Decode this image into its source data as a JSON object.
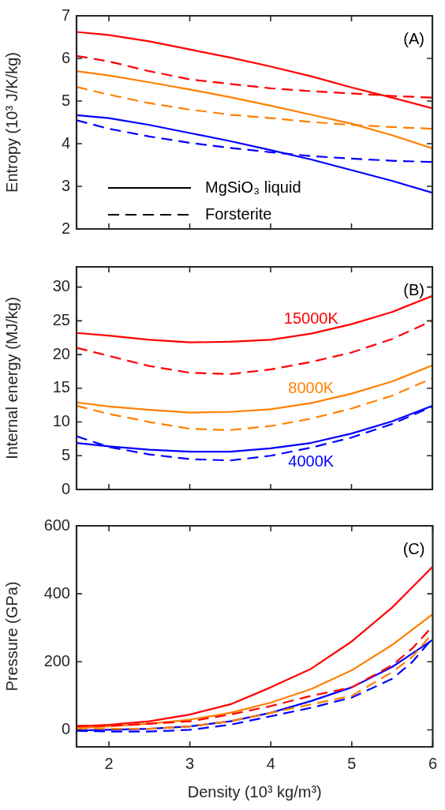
{
  "chart_data": [
    {
      "type": "line",
      "ylabel": "Entropy (10³ J/K/kg)",
      "x": [
        1.6,
        2,
        2.5,
        3,
        3.5,
        4,
        4.5,
        5,
        5.5,
        6
      ],
      "xlim": [
        1.6,
        6
      ],
      "xticks": [
        2,
        3,
        4,
        5,
        6
      ],
      "ylim": [
        2,
        7
      ],
      "yticks": [
        2,
        3,
        4,
        5,
        6,
        7
      ],
      "tick_labels": "y",
      "annotations": [
        "(A)",
        "MgSiO₃ liquid",
        "Forsterite"
      ],
      "series": [
        {
          "color": "#ff0000",
          "line_style": "solid",
          "values": [
            6.62,
            6.55,
            6.4,
            6.21,
            6.02,
            5.81,
            5.58,
            5.32,
            5.08,
            4.83
          ]
        },
        {
          "color": "#ff0000",
          "line_style": "dashed",
          "values": [
            6.06,
            5.93,
            5.7,
            5.51,
            5.4,
            5.3,
            5.23,
            5.18,
            5.12,
            5.08
          ]
        },
        {
          "color": "#ff8000",
          "line_style": "solid",
          "values": [
            5.7,
            5.6,
            5.44,
            5.27,
            5.09,
            4.89,
            4.68,
            4.47,
            4.2,
            3.89
          ]
        },
        {
          "color": "#ff8000",
          "line_style": "dashed",
          "values": [
            5.33,
            5.15,
            4.95,
            4.8,
            4.68,
            4.6,
            4.51,
            4.44,
            4.39,
            4.35
          ]
        },
        {
          "color": "#0000ff",
          "line_style": "solid",
          "values": [
            4.67,
            4.6,
            4.44,
            4.25,
            4.06,
            3.85,
            3.63,
            3.38,
            3.13,
            2.85
          ]
        },
        {
          "color": "#0000ff",
          "line_style": "dashed",
          "values": [
            4.55,
            4.35,
            4.17,
            4.02,
            3.9,
            3.8,
            3.71,
            3.65,
            3.6,
            3.57
          ]
        }
      ]
    },
    {
      "type": "line",
      "ylabel": "Internal energy (MJ/kg)",
      "x": [
        1.6,
        2,
        2.5,
        3,
        3.5,
        4,
        4.5,
        5,
        5.5,
        6
      ],
      "xlim": [
        1.6,
        6
      ],
      "xticks": [
        2,
        3,
        4,
        5,
        6
      ],
      "ylim": [
        0,
        33
      ],
      "yticks": [
        0,
        5,
        10,
        15,
        20,
        25,
        30
      ],
      "tick_labels": "y",
      "annotations": [
        "(B)"
      ],
      "series": [
        {
          "name": "15000K",
          "color": "#ff0000",
          "line_style": "solid",
          "values": [
            23.2,
            22.8,
            22.2,
            21.8,
            21.9,
            22.2,
            23.1,
            24.5,
            26.3,
            28.7
          ]
        },
        {
          "color": "#ff0000",
          "line_style": "dashed",
          "values": [
            21,
            19.8,
            18.3,
            17.3,
            17.1,
            17.8,
            18.9,
            20.3,
            22.3,
            25
          ]
        },
        {
          "name": "8000K",
          "color": "#ff8000",
          "line_style": "solid",
          "values": [
            12.9,
            12.3,
            11.8,
            11.4,
            11.5,
            11.9,
            12.8,
            14.2,
            16,
            18.4
          ]
        },
        {
          "color": "#ff8000",
          "line_style": "dashed",
          "values": [
            12.4,
            11.2,
            10,
            9,
            8.8,
            9.4,
            10.5,
            12,
            13.9,
            16.5
          ]
        },
        {
          "name": "4000K",
          "color": "#0000ff",
          "line_style": "solid",
          "values": [
            6.9,
            6.4,
            5.9,
            5.6,
            5.6,
            6.1,
            6.9,
            8.3,
            10.1,
            12.4
          ]
        },
        {
          "color": "#0000ff",
          "line_style": "dashed",
          "values": [
            7.9,
            6.3,
            5.2,
            4.5,
            4.3,
            5,
            6.2,
            7.7,
            9.7,
            12.3
          ]
        }
      ]
    },
    {
      "type": "line",
      "xlabel": "Density (10³ kg/m³)",
      "ylabel": "Pressure (GPa)",
      "x": [
        1.6,
        2,
        2.5,
        3,
        3.5,
        4,
        4.5,
        5,
        5.5,
        6
      ],
      "xlim": [
        1.6,
        6
      ],
      "xticks": [
        2,
        3,
        4,
        5,
        6
      ],
      "ylim": [
        -50,
        600
      ],
      "yticks": [
        0,
        200,
        400,
        600
      ],
      "annotations": [
        "(C)"
      ],
      "series": [
        {
          "color": "#ff0000",
          "line_style": "solid",
          "values": [
            10,
            15,
            25,
            45,
            75,
            125,
            180,
            260,
            360,
            480
          ]
        },
        {
          "color": "#ff0000",
          "line_style": "dashed",
          "x": [
            1.6,
            2,
            2.5,
            3,
            3.5,
            4,
            4.5,
            5,
            5.5,
            5.75,
            6
          ],
          "values": [
            12,
            12,
            18,
            25,
            45,
            70,
            100,
            125,
            190,
            240,
            305
          ]
        },
        {
          "color": "#ff8000",
          "line_style": "solid",
          "values": [
            5,
            10,
            18,
            30,
            50,
            80,
            120,
            175,
            250,
            340
          ]
        },
        {
          "color": "#ff8000",
          "line_style": "dashed",
          "x": [
            1.6,
            2,
            2.5,
            3,
            3.5,
            4,
            4.5,
            5,
            5.5,
            5.75,
            6
          ],
          "values": [
            5,
            3,
            3,
            10,
            25,
            50,
            75,
            100,
            170,
            215,
            285
          ]
        },
        {
          "color": "#0000ff",
          "line_style": "solid",
          "values": [
            -2,
            0,
            3,
            10,
            25,
            50,
            85,
            125,
            185,
            265
          ]
        },
        {
          "color": "#0000ff",
          "line_style": "dashed",
          "x": [
            1.6,
            2,
            2.5,
            3,
            3.5,
            4,
            4.5,
            5,
            5.5,
            5.75,
            6
          ],
          "values": [
            -3,
            -5,
            -5,
            0,
            15,
            40,
            65,
            95,
            150,
            200,
            270
          ]
        }
      ]
    }
  ]
}
